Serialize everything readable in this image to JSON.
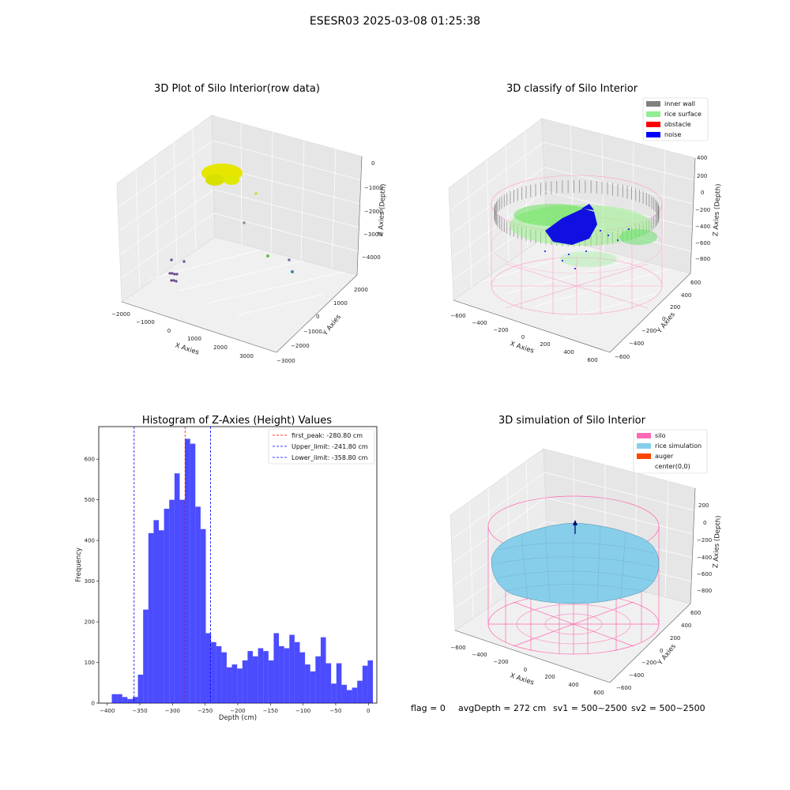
{
  "suptitle": "ESESR03 2025-03-08 01:25:38",
  "footer": {
    "flag": "flag = 0",
    "avg_depth": "avgDepth = 272 cm",
    "sv1": "sv1 = 500~2500",
    "sv2": "sv2 = 500~2500"
  },
  "colors": {
    "inner_wall": "#808080",
    "rice_surface": "#90ee90",
    "obstacle": "#ff0000",
    "noise": "#0000ff",
    "silo": "#ff69b4",
    "rice_simulation": "#87ceeb",
    "auger": "#ff4500",
    "histogram": "#0000ff",
    "first_peak_line": "#ff0000",
    "limit_lines": "#0000ff"
  },
  "panels": {
    "raw": {
      "title": "3D Plot of Silo Interior(row data)",
      "xlabel": "X Axies",
      "ylabel": "Y Axies",
      "zlabel": "Z Axies (Depth)",
      "xticks": [
        "−2000",
        "−1000",
        "0",
        "1000",
        "2000",
        "3000"
      ],
      "yticks": [
        "2000",
        "1000",
        "0",
        "−1000",
        "−2000",
        "−3000"
      ],
      "zticks": [
        "0",
        "−1000",
        "−2000",
        "−3000",
        "−4000"
      ]
    },
    "classify": {
      "title": "3D classify of Silo Interior",
      "xlabel": "X Axies",
      "ylabel": "Y Axies",
      "zlabel": "Z Axies (Depth)",
      "xticks": [
        "−600",
        "−400",
        "−200",
        "0",
        "200",
        "400",
        "600"
      ],
      "yticks": [
        "600",
        "400",
        "200",
        "0",
        "−200",
        "−400",
        "−600"
      ],
      "zticks": [
        "400",
        "200",
        "0",
        "−200",
        "−400",
        "−600",
        "−800"
      ],
      "legend": [
        {
          "label": "inner wall",
          "color": "#808080"
        },
        {
          "label": "rice surface",
          "color": "#90ee90"
        },
        {
          "label": "obstacle",
          "color": "#ff0000"
        },
        {
          "label": "noise",
          "color": "#0000ff"
        }
      ]
    },
    "simulation": {
      "title": "3D simulation of Silo Interior",
      "xlabel": "X Axies",
      "ylabel": "Y Axies",
      "zlabel": "Z Axies (Depth)",
      "xticks": [
        "−600",
        "−400",
        "−200",
        "0",
        "200",
        "400",
        "600"
      ],
      "yticks": [
        "600",
        "400",
        "200",
        "0",
        "−200",
        "−400",
        "−600"
      ],
      "zticks": [
        "200",
        "0",
        "−200",
        "−400",
        "−600",
        "−800"
      ],
      "legend": [
        {
          "label": "silo",
          "color": "#ff69b4"
        },
        {
          "label": "rice simulation",
          "color": "#87ceeb"
        },
        {
          "label": "auger",
          "color": "#ff4500"
        },
        {
          "label": "center(0,0)",
          "color": "#ffffff"
        }
      ]
    }
  },
  "chart_data": {
    "type": "bar",
    "title": "Histogram of Z-Axies (Height) Values",
    "xlabel": "Depth (cm)",
    "ylabel": "Frequency",
    "xlim": [
      -413,
      13
    ],
    "ylim": [
      0,
      680
    ],
    "xticks": [
      -400,
      -350,
      -300,
      -250,
      -200,
      -150,
      -100,
      -50,
      0
    ],
    "yticks": [
      0,
      100,
      200,
      300,
      400,
      500,
      600
    ],
    "bin_start": -393,
    "bin_width": 8,
    "values": [
      22,
      22,
      15,
      10,
      15,
      70,
      230,
      418,
      450,
      425,
      478,
      500,
      565,
      500,
      650,
      638,
      483,
      428,
      172,
      150,
      140,
      125,
      88,
      95,
      85,
      105,
      128,
      115,
      135,
      128,
      105,
      172,
      140,
      135,
      168,
      150,
      125,
      95,
      78,
      115,
      162,
      98,
      48,
      98,
      45,
      32,
      38,
      55,
      92,
      105
    ],
    "reference_lines": [
      {
        "name": "first_peak: -280.80 cm",
        "x": -280.8,
        "color": "#ff0000"
      },
      {
        "name": "Upper_limit: -241.80 cm",
        "x": -241.8,
        "color": "#0000ff"
      },
      {
        "name": "Lower_limit: -358.80 cm",
        "x": -358.8,
        "color": "#0000ff"
      }
    ],
    "legend_position": "upper right",
    "grid": false
  }
}
